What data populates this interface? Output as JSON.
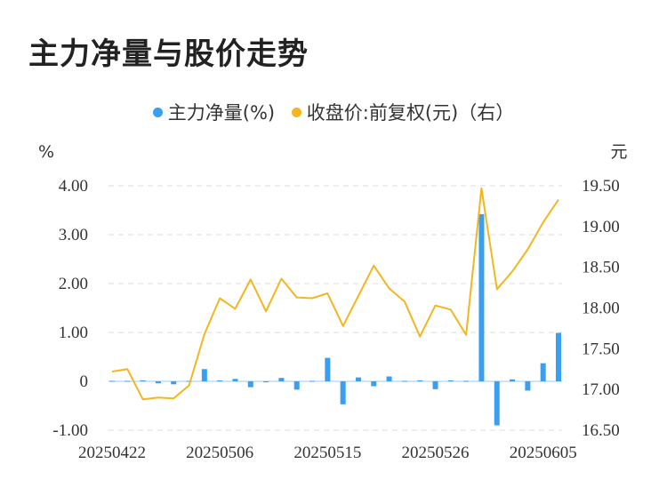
{
  "title": "主力净量与股价走势",
  "colors": {
    "bar": "#3a9ff0",
    "line": "#f2b621",
    "grid": "#dcdcdc",
    "zero": "#9ec9f5"
  },
  "chart_data": {
    "type": "bar+line",
    "title": "主力净量与股价走势",
    "legend": [
      {
        "name": "主力净量(%)",
        "color": "#3a9ff0"
      },
      {
        "name": "收盘价:前复权(元)（右）",
        "color": "#f2b621"
      }
    ],
    "left_unit": "%",
    "right_unit": "元",
    "left_ticks": [
      "4.00",
      "3.00",
      "2.00",
      "1.00",
      "0",
      "-1.00"
    ],
    "right_ticks": [
      "19.50",
      "19.00",
      "18.50",
      "18.00",
      "17.50",
      "17.00",
      "16.50"
    ],
    "x_ticks": [
      "20250422",
      "20250506",
      "20250515",
      "20250526",
      "20250605"
    ],
    "left_ylim": [
      -1.0,
      4.0
    ],
    "right_ylim": [
      16.5,
      19.5
    ],
    "grid": "horizontal dashed",
    "x": [
      "20250422",
      "20250423",
      "20250424",
      "20250425",
      "20250428",
      "20250429",
      "20250430",
      "20250506",
      "20250507",
      "20250508",
      "20250509",
      "20250512",
      "20250513",
      "20250514",
      "20250515",
      "20250516",
      "20250519",
      "20250520",
      "20250521",
      "20250522",
      "20250523",
      "20250526",
      "20250527",
      "20250528",
      "20250529",
      "20250530",
      "20250603",
      "20250604",
      "20250605",
      "20250606"
    ],
    "series": [
      {
        "name": "主力净量(%)",
        "type": "bar",
        "axis": "left",
        "values": [
          0.01,
          0.01,
          0.02,
          -0.04,
          -0.06,
          0.01,
          0.25,
          0.02,
          0.05,
          -0.12,
          -0.02,
          0.07,
          -0.17,
          0.01,
          0.48,
          -0.47,
          0.08,
          -0.1,
          0.1,
          0.01,
          0.02,
          -0.16,
          0.02,
          0.01,
          3.42,
          -0.9,
          0.04,
          -0.19,
          0.37,
          0.99
        ]
      },
      {
        "name": "收盘价:前复权(元)（右）",
        "type": "line",
        "axis": "right",
        "values": [
          17.22,
          17.25,
          16.88,
          16.9,
          16.89,
          17.05,
          17.68,
          18.12,
          17.99,
          18.35,
          17.96,
          18.36,
          18.13,
          18.12,
          18.18,
          17.78,
          18.15,
          18.52,
          18.24,
          18.08,
          17.65,
          18.03,
          17.98,
          17.67,
          19.47,
          18.23,
          18.45,
          18.72,
          19.05,
          19.33
        ]
      }
    ]
  }
}
